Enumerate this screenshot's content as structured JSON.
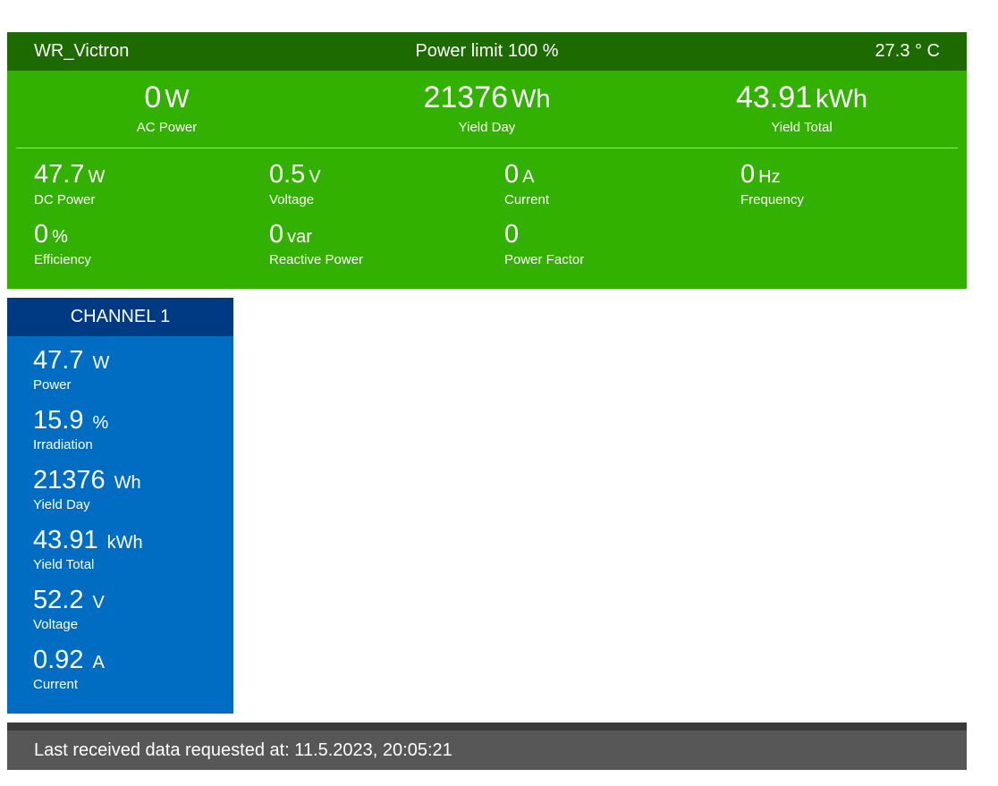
{
  "inverter": {
    "name": "WR_Victron",
    "power_limit": "Power limit 100 %",
    "temperature": "27.3 ° C"
  },
  "totals": [
    {
      "value": "0",
      "unit": "W",
      "label": "AC Power"
    },
    {
      "value": "21376",
      "unit": "Wh",
      "label": "Yield Day"
    },
    {
      "value": "43.91",
      "unit": "kWh",
      "label": "Yield Total"
    }
  ],
  "metrics": [
    {
      "value": "47.7",
      "unit": "W",
      "label": "DC Power"
    },
    {
      "value": "0.5",
      "unit": "V",
      "label": "Voltage"
    },
    {
      "value": "0",
      "unit": "A",
      "label": "Current"
    },
    {
      "value": "0",
      "unit": "Hz",
      "label": "Frequency"
    },
    {
      "value": "0",
      "unit": "%",
      "label": "Efficiency"
    },
    {
      "value": "0",
      "unit": "var",
      "label": "Reactive Power"
    },
    {
      "value": "0",
      "unit": "",
      "label": "Power Factor"
    }
  ],
  "channel": {
    "title": "CHANNEL 1",
    "items": [
      {
        "value": "47.7",
        "unit": "W",
        "label": "Power"
      },
      {
        "value": "15.9",
        "unit": "%",
        "label": "Irradiation"
      },
      {
        "value": "21376",
        "unit": "Wh",
        "label": "Yield Day"
      },
      {
        "value": "43.91",
        "unit": "kWh",
        "label": "Yield Total"
      },
      {
        "value": "52.2",
        "unit": "V",
        "label": "Voltage"
      },
      {
        "value": "0.92",
        "unit": "A",
        "label": "Current"
      }
    ]
  },
  "footer": {
    "text": "Last received data requested at: 11.5.2023, 20:05:21"
  },
  "colors": {
    "header": "#1d6a00",
    "body": "#32b100",
    "channel_header": "#003a82",
    "channel_body": "#006dc2",
    "footer": "#575757"
  }
}
